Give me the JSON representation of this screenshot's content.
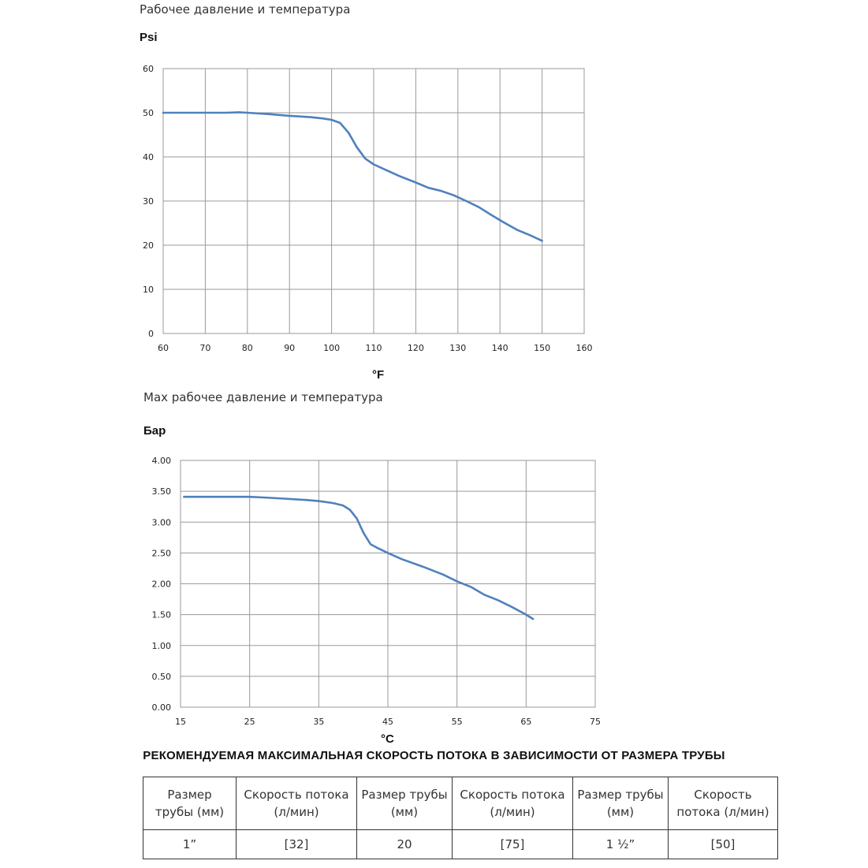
{
  "chart_data": [
    {
      "type": "line",
      "title": "Рабочее давление и температура",
      "ylabel": "Psi",
      "xlabel": "°F",
      "xlim": [
        60,
        160
      ],
      "ylim": [
        0,
        60
      ],
      "x_ticks": [
        "60",
        "70",
        "80",
        "90",
        "100",
        "110",
        "120",
        "130",
        "140",
        "150",
        "160"
      ],
      "y_ticks": [
        "0",
        "10",
        "20",
        "30",
        "40",
        "50",
        "60"
      ],
      "grid": true,
      "color": "#4f81bd",
      "series": [
        {
          "x": [
            60,
            70,
            75,
            78,
            80,
            85,
            90,
            95,
            98,
            100,
            102,
            104,
            106,
            108,
            110,
            113,
            116,
            120,
            123,
            126,
            129,
            132,
            135,
            138,
            141,
            144,
            147,
            150
          ],
          "y": [
            50,
            50,
            50,
            50.1,
            50,
            49.7,
            49.3,
            49.0,
            48.7,
            48.4,
            47.7,
            45.5,
            42.2,
            39.6,
            38.3,
            37.0,
            35.7,
            34.2,
            33.0,
            32.3,
            31.3,
            30.0,
            28.6,
            26.8,
            25.1,
            23.5,
            22.3,
            21.0
          ]
        }
      ]
    },
    {
      "type": "line",
      "title": "Max рабочее давление и температура",
      "ylabel": "Бар",
      "xlabel": "°C",
      "xlim": [
        15,
        75
      ],
      "ylim": [
        0,
        4
      ],
      "x_ticks": [
        "15",
        "25",
        "35",
        "45",
        "55",
        "65",
        "75"
      ],
      "y_ticks": [
        "0.00",
        "0.50",
        "1.00",
        "1.50",
        "2.00",
        "2.50",
        "3.00",
        "3.50",
        "4.00"
      ],
      "grid": true,
      "color": "#4f81bd",
      "series": [
        {
          "x": [
            15.5,
            20,
            25,
            27,
            30,
            33,
            35,
            37,
            38.5,
            39.5,
            40.5,
            41.5,
            42.5,
            43.5,
            45,
            47,
            50,
            53,
            55,
            57,
            59,
            61,
            63,
            65,
            66
          ],
          "y": [
            3.41,
            3.41,
            3.41,
            3.4,
            3.38,
            3.36,
            3.34,
            3.31,
            3.27,
            3.2,
            3.06,
            2.82,
            2.64,
            2.58,
            2.5,
            2.4,
            2.28,
            2.15,
            2.04,
            1.95,
            1.82,
            1.73,
            1.62,
            1.5,
            1.43
          ]
        }
      ]
    }
  ],
  "table": {
    "title": "РЕКОМЕНДУЕМАЯ МАКСИМАЛЬНАЯ СКОРОСТЬ ПОТОКА В ЗАВИСИМОСТИ ОТ РАЗМЕРА ТРУБЫ",
    "headers": [
      "Размер трубы (мм)",
      "Скорость потока (л/мин)",
      "Размер трубы (мм)",
      "Скорость потока (л/мин)",
      "Размер трубы (мм)",
      "Скорость потока (л/мин)"
    ],
    "row": [
      "1”",
      "[32]",
      "20",
      "[75]",
      "1 ½”",
      "[50]"
    ]
  }
}
